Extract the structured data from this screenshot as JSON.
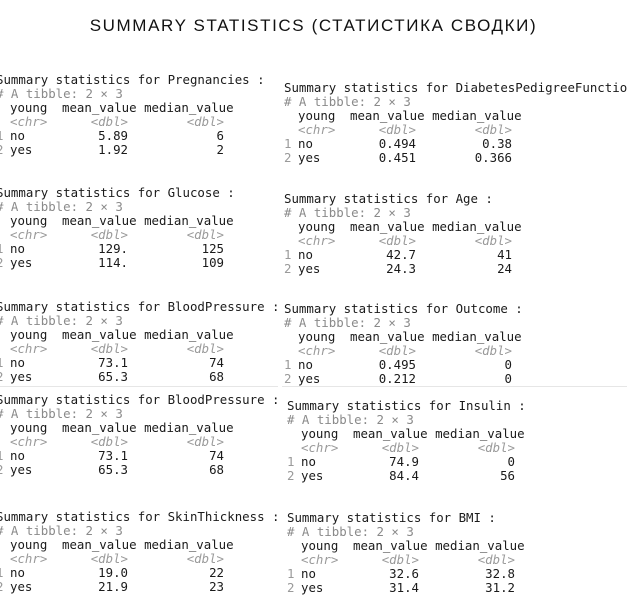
{
  "title": "SUMMARY STATISTICS (СТАТИСТИКА СВОДКИ)",
  "tibble_desc": "# A tibble: 2 × 3",
  "headers": {
    "young": "young",
    "mean": "mean_value",
    "median": "median_value"
  },
  "types": {
    "young": "<chr>",
    "mean": "<dbl>",
    "median": "<dbl>"
  },
  "blocks": [
    {
      "heading": "Summary statistics for Pregnancies :",
      "rows": [
        {
          "n": "1",
          "young": "no",
          "mean": "5.89",
          "median": "6"
        },
        {
          "n": "2",
          "young": "yes",
          "mean": "1.92",
          "median": "2"
        }
      ]
    },
    {
      "heading": "Summary statistics for DiabetesPedigreeFunction :",
      "rows": [
        {
          "n": "1",
          "young": "no",
          "mean": "0.494",
          "median": "0.38"
        },
        {
          "n": "2",
          "young": "yes",
          "mean": "0.451",
          "median": "0.366"
        }
      ]
    },
    {
      "heading": "Summary statistics for Glucose :",
      "rows": [
        {
          "n": "1",
          "young": "no",
          "mean": "129.",
          "median": "125"
        },
        {
          "n": "2",
          "young": "yes",
          "mean": "114.",
          "median": "109"
        }
      ]
    },
    {
      "heading": "Summary statistics for Age :",
      "rows": [
        {
          "n": "1",
          "young": "no",
          "mean": "42.7",
          "median": "41"
        },
        {
          "n": "2",
          "young": "yes",
          "mean": "24.3",
          "median": "24"
        }
      ]
    },
    {
      "heading": "Summary statistics for BloodPressure :",
      "rows": [
        {
          "n": "1",
          "young": "no",
          "mean": "73.1",
          "median": "74"
        },
        {
          "n": "2",
          "young": "yes",
          "mean": "65.3",
          "median": "68"
        }
      ]
    },
    {
      "heading": "Summary statistics for Outcome :",
      "rows": [
        {
          "n": "1",
          "young": "no",
          "mean": "0.495",
          "median": "0"
        },
        {
          "n": "2",
          "young": "yes",
          "mean": "0.212",
          "median": "0"
        }
      ]
    },
    {
      "heading": "Summary statistics for BloodPressure :",
      "rows": [
        {
          "n": "1",
          "young": "no",
          "mean": "73.1",
          "median": "74"
        },
        {
          "n": "2",
          "young": "yes",
          "mean": "65.3",
          "median": "68"
        }
      ]
    },
    {
      "heading": "Summary statistics for Insulin :",
      "rows": [
        {
          "n": "1",
          "young": "no",
          "mean": "74.9",
          "median": "0"
        },
        {
          "n": "2",
          "young": "yes",
          "mean": "84.4",
          "median": "56"
        }
      ]
    },
    {
      "heading": "Summary statistics for SkinThickness :",
      "rows": [
        {
          "n": "1",
          "young": "no",
          "mean": "19.0",
          "median": "22"
        },
        {
          "n": "2",
          "young": "yes",
          "mean": "21.9",
          "median": "23"
        }
      ]
    },
    {
      "heading": "Summary statistics for BMI :",
      "rows": [
        {
          "n": "1",
          "young": "no",
          "mean": "32.6",
          "median": "32.8"
        },
        {
          "n": "2",
          "young": "yes",
          "mean": "31.4",
          "median": "31.2"
        }
      ]
    }
  ]
}
